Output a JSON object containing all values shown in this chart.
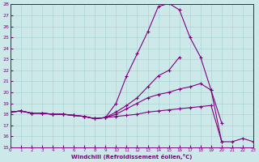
{
  "xlabel": "Windchill (Refroidissement éolien,°C)",
  "xlim": [
    0,
    23
  ],
  "ylim": [
    15,
    28
  ],
  "yticks": [
    15,
    16,
    17,
    18,
    19,
    20,
    21,
    22,
    23,
    24,
    25,
    26,
    27,
    28
  ],
  "xticks": [
    0,
    1,
    2,
    3,
    4,
    5,
    6,
    7,
    8,
    9,
    10,
    11,
    12,
    13,
    14,
    15,
    16,
    17,
    18,
    19,
    20,
    21,
    22,
    23
  ],
  "bg_color": "#cce8e8",
  "line_color": "#800080",
  "grid_color": "#aad4d4",
  "lines": [
    {
      "x": [
        0,
        1,
        2,
        3,
        4,
        5,
        6,
        7,
        8,
        9,
        10,
        11,
        12,
        13,
        14,
        15,
        16,
        17,
        18,
        19,
        20,
        21,
        22,
        23
      ],
      "y": [
        18.2,
        18.3,
        18.1,
        18.1,
        18.0,
        18.0,
        17.9,
        17.8,
        17.6,
        17.7,
        19.0,
        21.5,
        23.5,
        25.5,
        27.8,
        28.1,
        27.5,
        25.0,
        23.2,
        20.2,
        17.2,
        null,
        null,
        null
      ]
    },
    {
      "x": [
        0,
        1,
        2,
        3,
        4,
        5,
        6,
        7,
        8,
        9,
        10,
        11,
        12,
        13,
        14,
        15,
        16,
        17,
        18,
        19,
        20,
        21,
        22,
        23
      ],
      "y": [
        18.2,
        18.3,
        18.1,
        18.1,
        18.0,
        18.0,
        17.9,
        17.8,
        17.6,
        17.7,
        18.2,
        18.8,
        19.5,
        20.5,
        21.5,
        22.0,
        23.2,
        null,
        null,
        null,
        null,
        null,
        null,
        null
      ]
    },
    {
      "x": [
        0,
        1,
        2,
        3,
        4,
        5,
        6,
        7,
        8,
        9,
        10,
        11,
        12,
        13,
        14,
        15,
        16,
        17,
        18,
        19,
        20,
        21,
        22,
        23
      ],
      "y": [
        18.2,
        18.3,
        18.1,
        18.1,
        18.0,
        18.0,
        17.9,
        17.8,
        17.6,
        17.7,
        18.0,
        18.5,
        19.0,
        19.5,
        19.8,
        20.0,
        20.3,
        20.5,
        20.8,
        20.2,
        15.5,
        null,
        null,
        null
      ]
    },
    {
      "x": [
        0,
        1,
        2,
        3,
        4,
        5,
        6,
        7,
        8,
        9,
        10,
        11,
        12,
        13,
        14,
        15,
        16,
        17,
        18,
        19,
        20,
        21,
        22,
        23
      ],
      "y": [
        18.2,
        18.3,
        18.1,
        18.1,
        18.0,
        18.0,
        17.9,
        17.8,
        17.6,
        17.7,
        17.8,
        17.9,
        18.0,
        18.2,
        18.3,
        18.4,
        18.5,
        18.6,
        18.7,
        18.8,
        15.5,
        15.5,
        15.8,
        15.5
      ]
    }
  ]
}
